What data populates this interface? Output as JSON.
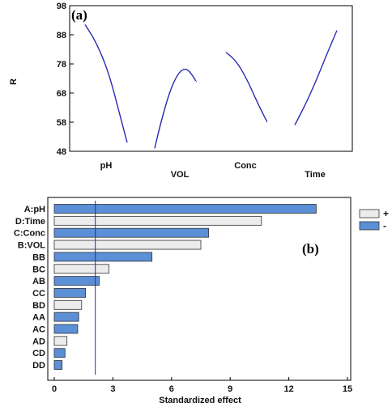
{
  "chart_data": [
    {
      "type": "line",
      "panel_label": "(a)",
      "ylabel": "R",
      "ylim": [
        48,
        98
      ],
      "yticks": [
        48,
        58,
        68,
        78,
        88,
        98
      ],
      "factors": [
        "pH",
        "VOL",
        "Conc",
        "Time"
      ],
      "grid": false,
      "series": [
        {
          "factor_index": 0,
          "points": [
            [
              0,
              91.5
            ],
            [
              0.2,
              87
            ],
            [
              0.4,
              81
            ],
            [
              0.6,
              73
            ],
            [
              0.8,
              62
            ],
            [
              1.0,
              51
            ]
          ]
        },
        {
          "factor_index": 1,
          "points": [
            [
              0,
              49
            ],
            [
              0.15,
              58
            ],
            [
              0.35,
              68
            ],
            [
              0.55,
              74.5
            ],
            [
              0.72,
              76.5
            ],
            [
              0.85,
              75.5
            ],
            [
              1.0,
              72
            ]
          ]
        },
        {
          "factor_index": 2,
          "points": [
            [
              0,
              82
            ],
            [
              0.25,
              79
            ],
            [
              0.5,
              73
            ],
            [
              0.75,
              65
            ],
            [
              1.0,
              58
            ]
          ]
        },
        {
          "factor_index": 3,
          "points": [
            [
              0,
              57
            ],
            [
              0.25,
              64
            ],
            [
              0.5,
              72
            ],
            [
              0.75,
              81
            ],
            [
              1.0,
              89.5
            ]
          ]
        }
      ]
    },
    {
      "type": "bar",
      "orientation": "horizontal",
      "panel_label": "(b)",
      "xlabel": "Standardized effect",
      "xlim": [
        0,
        15
      ],
      "xticks": [
        0,
        3,
        6,
        9,
        12,
        15
      ],
      "reference_line": 2.1,
      "categories": [
        "A:pH",
        "D:Time",
        "C:Conc",
        "B:VOL",
        "BB",
        "BC",
        "AB",
        "CC",
        "BD",
        "AA",
        "AC",
        "AD",
        "CD",
        "DD"
      ],
      "values": [
        13.4,
        10.6,
        7.9,
        7.5,
        5.0,
        2.8,
        2.3,
        1.6,
        1.4,
        1.25,
        1.2,
        0.65,
        0.55,
        0.4
      ],
      "signs": [
        "-",
        "+",
        "-",
        "+",
        "-",
        "+",
        "-",
        "-",
        "+",
        "-",
        "-",
        "+",
        "-",
        "-"
      ],
      "legend": {
        "position": "top-right",
        "entries": [
          {
            "sign": "+",
            "label": "+",
            "color": "#ececec"
          },
          {
            "sign": "-",
            "label": "-",
            "color": "#5b8fd6"
          }
        ]
      },
      "colors": {
        "positive": "#ececec",
        "negative": "#5b8fd6",
        "line": "#2a2ab5"
      }
    }
  ]
}
